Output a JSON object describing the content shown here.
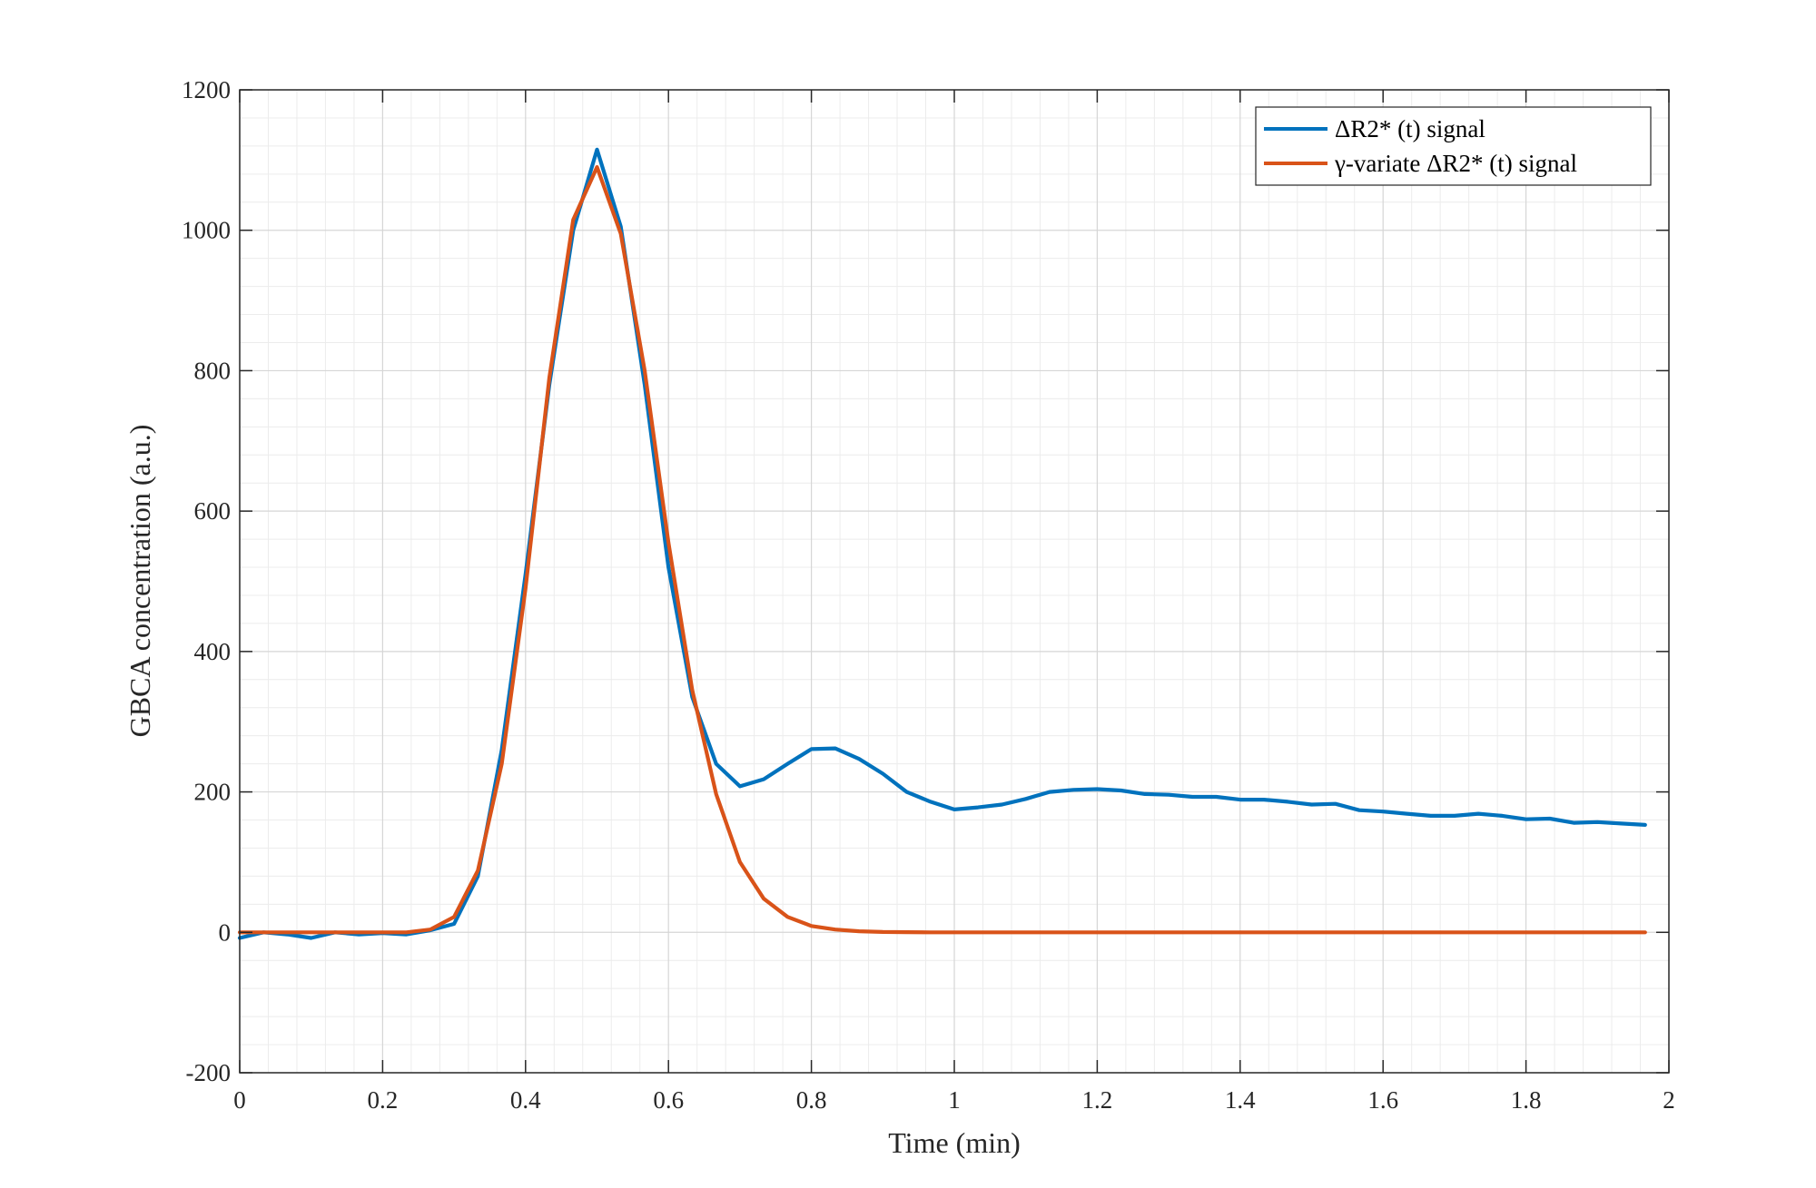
{
  "chart_data": {
    "type": "line",
    "xlabel": "Time (min)",
    "ylabel": "GBCA concentration (a.u.)",
    "xlim": [
      0,
      2
    ],
    "ylim": [
      -200,
      1200
    ],
    "xticks": [
      0,
      0.2,
      0.4,
      0.6,
      0.8,
      1,
      1.2,
      1.4,
      1.6,
      1.8,
      2
    ],
    "xtick_labels": [
      "0",
      "0.2",
      "0.4",
      "0.6",
      "0.8",
      "1",
      "1.2",
      "1.4",
      "1.6",
      "1.8",
      "2"
    ],
    "yticks": [
      -200,
      0,
      200,
      400,
      600,
      800,
      1000,
      1200
    ],
    "ytick_labels": [
      "-200",
      "0",
      "200",
      "400",
      "600",
      "800",
      "1000",
      "1200"
    ],
    "grid": true,
    "minor_grid": true,
    "legend_position": "top-right",
    "series": [
      {
        "name": "ΔR2* (t) signal",
        "color": "#0072BD",
        "x": [
          0,
          0.0333,
          0.0667,
          0.1,
          0.1333,
          0.1667,
          0.2,
          0.2333,
          0.2667,
          0.3,
          0.3333,
          0.3667,
          0.4,
          0.4333,
          0.4667,
          0.5,
          0.5333,
          0.5667,
          0.6,
          0.6333,
          0.6667,
          0.7,
          0.7333,
          0.7667,
          0.8,
          0.8333,
          0.8667,
          0.9,
          0.9333,
          0.9667,
          1,
          1.0333,
          1.0667,
          1.1,
          1.1333,
          1.1667,
          1.2,
          1.2333,
          1.2667,
          1.3,
          1.3333,
          1.3667,
          1.4,
          1.4333,
          1.4667,
          1.5,
          1.5333,
          1.5667,
          1.6,
          1.6333,
          1.6667,
          1.7,
          1.7333,
          1.7667,
          1.8,
          1.8333,
          1.8667,
          1.9,
          1.9333,
          1.9667
        ],
        "y": [
          -8,
          0,
          -3,
          -8,
          0,
          -3,
          -1,
          -3,
          3,
          12,
          80,
          260,
          510,
          780,
          1000,
          1115,
          1005,
          780,
          520,
          335,
          240,
          208,
          218,
          240,
          261,
          262,
          247,
          226,
          200,
          186,
          175,
          178,
          182,
          190,
          200,
          203,
          204,
          202,
          197,
          196,
          193,
          193,
          189,
          189,
          186,
          182,
          183,
          174,
          172,
          169,
          166,
          166,
          169,
          166,
          161,
          162,
          156,
          157,
          155,
          153
        ]
      },
      {
        "name": "γ-variate ΔR2* (t) signal",
        "color": "#D95319",
        "x": [
          0,
          0.0333,
          0.0667,
          0.1,
          0.1333,
          0.1667,
          0.2,
          0.2333,
          0.2667,
          0.3,
          0.3333,
          0.3667,
          0.4,
          0.4333,
          0.4667,
          0.5,
          0.5333,
          0.5667,
          0.6,
          0.6333,
          0.6667,
          0.7,
          0.7333,
          0.7667,
          0.8,
          0.8333,
          0.8667,
          0.9,
          0.9333,
          0.9667,
          1,
          1.0333,
          1.0667,
          1.1,
          1.1333,
          1.1667,
          1.2,
          1.2333,
          1.2667,
          1.3,
          1.3333,
          1.3667,
          1.4,
          1.4333,
          1.4667,
          1.5,
          1.5333,
          1.5667,
          1.6,
          1.6333,
          1.6667,
          1.7,
          1.7333,
          1.7667,
          1.8,
          1.8333,
          1.8667,
          1.9,
          1.9333,
          1.9667
        ],
        "y": [
          0,
          0,
          0,
          0,
          0,
          0,
          0,
          0,
          4,
          22,
          88,
          240,
          490,
          790,
          1015,
          1090,
          995,
          800,
          555,
          345,
          197,
          100,
          48,
          22,
          9,
          4,
          1.5,
          0.5,
          0.2,
          0,
          0,
          0,
          0,
          0,
          0,
          0,
          0,
          0,
          0,
          0,
          0,
          0,
          0,
          0,
          0,
          0,
          0,
          0,
          0,
          0,
          0,
          0,
          0,
          0,
          0,
          0,
          0,
          0,
          0,
          0
        ]
      }
    ]
  }
}
